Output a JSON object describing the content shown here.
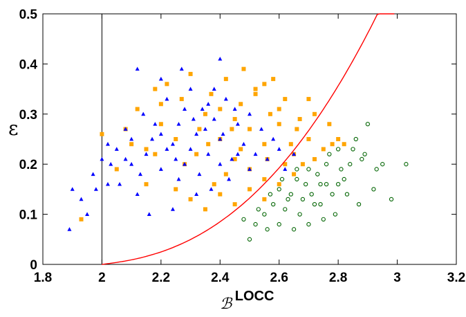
{
  "chart_data": {
    "type": "scatter",
    "xlabel_symbol": "ℬ",
    "xlabel_superscript": "LOCC",
    "ylabel": "ε",
    "xlim": [
      1.8,
      3.2
    ],
    "ylim": [
      0,
      0.5
    ],
    "x_ticks": [
      "1.8",
      "2",
      "2.2",
      "2.4",
      "2.6",
      "2.8",
      "3",
      "3.2"
    ],
    "y_ticks": [
      "0",
      "0.1",
      "0.2",
      "0.3",
      "0.4",
      "0.5"
    ],
    "grid": false,
    "legend": "none",
    "vertical_line_x": 2,
    "series": [
      {
        "marker": "square",
        "color": "#FFA500",
        "points": [
          [
            2.08,
            0.27
          ],
          [
            2.12,
            0.31
          ],
          [
            2.15,
            0.23
          ],
          [
            2.18,
            0.35
          ],
          [
            2.2,
            0.28
          ],
          [
            2.22,
            0.36
          ],
          [
            2.25,
            0.25
          ],
          [
            2.27,
            0.33
          ],
          [
            2.3,
            0.38
          ],
          [
            2.32,
            0.22
          ],
          [
            2.35,
            0.3
          ],
          [
            2.37,
            0.34
          ],
          [
            2.4,
            0.25
          ],
          [
            2.42,
            0.37
          ],
          [
            2.45,
            0.29
          ],
          [
            2.47,
            0.32
          ],
          [
            2.5,
            0.27
          ],
          [
            2.52,
            0.34
          ],
          [
            2.55,
            0.24
          ],
          [
            2.57,
            0.3
          ],
          [
            2.6,
            0.28
          ],
          [
            2.62,
            0.33
          ],
          [
            2.65,
            0.22
          ],
          [
            2.67,
            0.29
          ],
          [
            2.7,
            0.25
          ],
          [
            2.72,
            0.3
          ],
          [
            2.75,
            0.23
          ],
          [
            2.77,
            0.28
          ],
          [
            2.8,
            0.25
          ],
          [
            2.82,
            0.24
          ],
          [
            2.45,
            0.21
          ],
          [
            2.5,
            0.19
          ],
          [
            2.55,
            0.17
          ],
          [
            2.6,
            0.16
          ],
          [
            2.65,
            0.18
          ],
          [
            2.5,
            0.15
          ],
          [
            2.55,
            0.13
          ],
          [
            2.45,
            0.12
          ],
          [
            2.4,
            0.14
          ],
          [
            2.35,
            0.11
          ],
          [
            2.2,
            0.32
          ],
          [
            2.15,
            0.16
          ],
          [
            2.1,
            0.24
          ],
          [
            2.05,
            0.19
          ],
          [
            2.0,
            0.26
          ],
          [
            2.25,
            0.15
          ],
          [
            2.3,
            0.13
          ],
          [
            2.38,
            0.16
          ],
          [
            2.48,
            0.39
          ],
          [
            2.52,
            0.35
          ],
          [
            2.58,
            0.37
          ],
          [
            2.62,
            0.2
          ],
          [
            2.68,
            0.2
          ],
          [
            2.72,
            0.21
          ],
          [
            2.78,
            0.24
          ],
          [
            2.42,
            0.18
          ],
          [
            2.47,
            0.23
          ],
          [
            2.33,
            0.27
          ],
          [
            2.28,
            0.2
          ],
          [
            2.18,
            0.22
          ],
          [
            1.93,
            0.09
          ],
          [
            2.55,
            0.36
          ],
          [
            2.6,
            0.31
          ],
          [
            2.66,
            0.27
          ],
          [
            2.7,
            0.33
          ],
          [
            2.4,
            0.31
          ],
          [
            2.36,
            0.24
          ],
          [
            2.44,
            0.27
          ],
          [
            2.56,
            0.21
          ],
          [
            2.64,
            0.24
          ]
        ]
      },
      {
        "marker": "triangle",
        "color": "#0000FF",
        "points": [
          [
            1.89,
            0.07
          ],
          [
            1.9,
            0.15
          ],
          [
            1.93,
            0.13
          ],
          [
            1.95,
            0.1
          ],
          [
            1.97,
            0.18
          ],
          [
            2.0,
            0.21
          ],
          [
            2.02,
            0.16
          ],
          [
            2.05,
            0.23
          ],
          [
            2.08,
            0.27
          ],
          [
            2.1,
            0.2
          ],
          [
            2.12,
            0.14
          ],
          [
            2.14,
            0.3
          ],
          [
            2.17,
            0.25
          ],
          [
            2.2,
            0.19
          ],
          [
            2.22,
            0.33
          ],
          [
            2.24,
            0.24
          ],
          [
            2.26,
            0.28
          ],
          [
            2.28,
            0.2
          ],
          [
            2.3,
            0.35
          ],
          [
            2.32,
            0.26
          ],
          [
            2.34,
            0.31
          ],
          [
            2.36,
            0.22
          ],
          [
            2.38,
            0.29
          ],
          [
            2.4,
            0.25
          ],
          [
            2.42,
            0.33
          ],
          [
            2.44,
            0.21
          ],
          [
            2.46,
            0.28
          ],
          [
            2.48,
            0.24
          ],
          [
            2.5,
            0.3
          ],
          [
            2.52,
            0.22
          ],
          [
            2.54,
            0.27
          ],
          [
            2.56,
            0.21
          ],
          [
            2.58,
            0.25
          ],
          [
            2.6,
            0.23
          ],
          [
            2.62,
            0.19
          ],
          [
            2.65,
            0.22
          ],
          [
            2.12,
            0.39
          ],
          [
            2.27,
            0.39
          ],
          [
            2.4,
            0.41
          ],
          [
            2.2,
            0.37
          ],
          [
            2.16,
            0.1
          ],
          [
            2.24,
            0.11
          ],
          [
            2.32,
            0.14
          ],
          [
            2.06,
            0.16
          ],
          [
            2.3,
            0.23
          ],
          [
            2.35,
            0.27
          ],
          [
            2.25,
            0.21
          ],
          [
            2.2,
            0.26
          ],
          [
            2.15,
            0.22
          ],
          [
            2.4,
            0.2
          ],
          [
            2.45,
            0.31
          ],
          [
            2.38,
            0.35
          ],
          [
            2.28,
            0.31
          ],
          [
            2.18,
            0.28
          ],
          [
            2.1,
            0.25
          ],
          [
            2.03,
            0.2
          ],
          [
            2.33,
            0.18
          ],
          [
            2.43,
            0.17
          ],
          [
            2.5,
            0.19
          ],
          [
            2.37,
            0.15
          ],
          [
            2.02,
            0.24
          ],
          [
            1.98,
            0.15
          ],
          [
            2.26,
            0.17
          ],
          [
            2.31,
            0.29
          ],
          [
            2.36,
            0.32
          ],
          [
            2.41,
            0.26
          ],
          [
            2.46,
            0.22
          ],
          [
            2.22,
            0.23
          ],
          [
            2.13,
            0.18
          ],
          [
            2.08,
            0.21
          ]
        ]
      },
      {
        "marker": "circle-open",
        "color": "#006400",
        "points": [
          [
            2.5,
            0.05
          ],
          [
            2.55,
            0.1
          ],
          [
            2.58,
            0.12
          ],
          [
            2.6,
            0.15
          ],
          [
            2.62,
            0.11
          ],
          [
            2.64,
            0.14
          ],
          [
            2.66,
            0.17
          ],
          [
            2.68,
            0.13
          ],
          [
            2.7,
            0.19
          ],
          [
            2.72,
            0.12
          ],
          [
            2.74,
            0.16
          ],
          [
            2.76,
            0.2
          ],
          [
            2.78,
            0.14
          ],
          [
            2.8,
            0.23
          ],
          [
            2.82,
            0.17
          ],
          [
            2.84,
            0.2
          ],
          [
            2.86,
            0.25
          ],
          [
            2.88,
            0.21
          ],
          [
            2.9,
            0.28
          ],
          [
            2.95,
            0.2
          ],
          [
            3.03,
            0.2
          ],
          [
            2.98,
            0.13
          ],
          [
            2.92,
            0.15
          ],
          [
            2.87,
            0.12
          ],
          [
            2.83,
            0.14
          ],
          [
            2.79,
            0.1
          ],
          [
            2.75,
            0.09
          ],
          [
            2.7,
            0.08
          ],
          [
            2.65,
            0.07
          ],
          [
            2.6,
            0.08
          ],
          [
            2.56,
            0.07
          ],
          [
            2.52,
            0.08
          ],
          [
            2.48,
            0.09
          ],
          [
            2.67,
            0.1
          ],
          [
            2.63,
            0.13
          ],
          [
            2.61,
            0.17
          ],
          [
            2.69,
            0.16
          ],
          [
            2.73,
            0.18
          ],
          [
            2.77,
            0.22
          ],
          [
            2.81,
            0.19
          ],
          [
            2.85,
            0.23
          ],
          [
            2.89,
            0.22
          ],
          [
            2.93,
            0.19
          ],
          [
            2.71,
            0.14
          ],
          [
            2.57,
            0.14
          ],
          [
            2.53,
            0.11
          ],
          [
            2.74,
            0.12
          ],
          [
            2.66,
            0.19
          ],
          [
            2.76,
            0.16
          ],
          [
            2.8,
            0.16
          ]
        ]
      }
    ],
    "curve": {
      "color": "#FF0000",
      "x_start": 2.0,
      "x_end": 2.99
    }
  }
}
